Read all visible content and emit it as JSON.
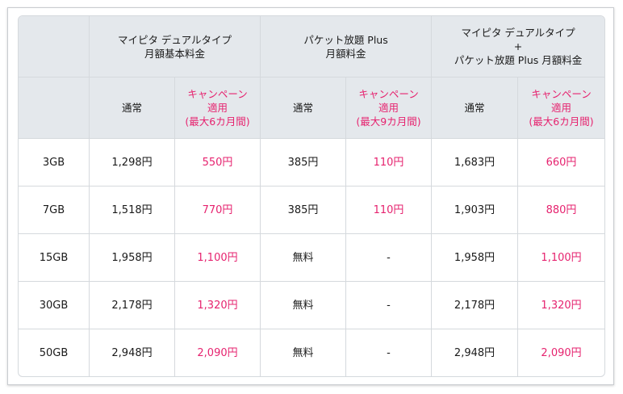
{
  "header": {
    "plans": [
      {
        "lines": [
          "マイピタ デュアルタイプ",
          "月額基本料金"
        ]
      },
      {
        "lines": [
          "パケット放題 Plus",
          "月額料金"
        ]
      },
      {
        "lines": [
          "マイピタ デュアルタイプ",
          "+",
          "パケット放題 Plus 月額料金"
        ]
      }
    ],
    "normal_label": "通常",
    "campaign_lines": [
      "キャンペーン",
      "適用"
    ],
    "campaign_periods": [
      "(最大6カ月間)",
      "(最大9カ月間)",
      "(最大6カ月間)"
    ]
  },
  "rows": [
    {
      "capacity": "3GB",
      "base": "1,298円",
      "base_cp": "550円",
      "packet": "385円",
      "packet_cp": "110円",
      "total": "1,683円",
      "total_cp": "660円"
    },
    {
      "capacity": "7GB",
      "base": "1,518円",
      "base_cp": "770円",
      "packet": "385円",
      "packet_cp": "110円",
      "total": "1,903円",
      "total_cp": "880円"
    },
    {
      "capacity": "15GB",
      "base": "1,958円",
      "base_cp": "1,100円",
      "packet": "無料",
      "packet_cp": "-",
      "total": "1,958円",
      "total_cp": "1,100円"
    },
    {
      "capacity": "30GB",
      "base": "2,178円",
      "base_cp": "1,320円",
      "packet": "無料",
      "packet_cp": "-",
      "total": "2,178円",
      "total_cp": "1,320円"
    },
    {
      "capacity": "50GB",
      "base": "2,948円",
      "base_cp": "2,090円",
      "packet": "無料",
      "packet_cp": "-",
      "total": "2,948円",
      "total_cp": "2,090円"
    }
  ],
  "colors": {
    "accent": "#e6236f",
    "header_bg": "#e4e8ec",
    "border": "#d5d9dd"
  }
}
